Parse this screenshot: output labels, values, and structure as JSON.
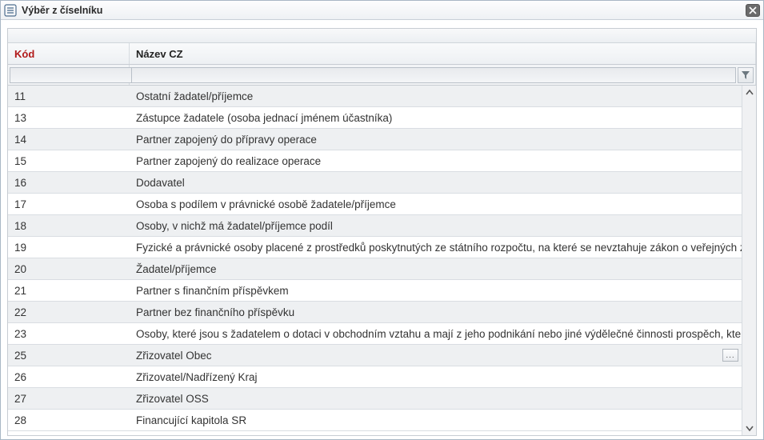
{
  "window": {
    "title": "Výběr z číselníku"
  },
  "grid": {
    "columns": {
      "code": "Kód",
      "name": "Název CZ"
    },
    "filters": {
      "code_value": "",
      "name_value": ""
    },
    "selectedIndex": 12,
    "rows": [
      {
        "code": "11",
        "name": "Ostatní žadatel/příjemce"
      },
      {
        "code": "13",
        "name": "Zástupce žadatele (osoba jednací jménem účastníka)"
      },
      {
        "code": "14",
        "name": "Partner zapojený do přípravy operace"
      },
      {
        "code": "15",
        "name": "Partner zapojený do realizace operace"
      },
      {
        "code": "16",
        "name": "Dodavatel"
      },
      {
        "code": "17",
        "name": "Osoba s podílem v právnické osobě žadatele/příjemce"
      },
      {
        "code": "18",
        "name": "Osoby, v nichž má žadatel/příjemce podíl"
      },
      {
        "code": "19",
        "name": "Fyzické a právnické osoby placené z prostředků poskytnutých ze státního rozpočtu, na které se nevztahuje zákon o veřejných zakázkác..."
      },
      {
        "code": "20",
        "name": "Žadatel/příjemce"
      },
      {
        "code": "21",
        "name": "Partner s finančním příspěvkem"
      },
      {
        "code": "22",
        "name": "Partner bez finančního příspěvku"
      },
      {
        "code": "23",
        "name": "Osoby, které jsou s žadatelem o dotaci v obchodním vztahu a mají z jeho podnikání nebo jiné výdělečné činnosti prospěch, který se liší o"
      },
      {
        "code": "25",
        "name": "Zřizovatel Obec"
      },
      {
        "code": "26",
        "name": "Zřizovatel/Nadřízený Kraj"
      },
      {
        "code": "27",
        "name": "Zřizovatel OSS"
      },
      {
        "code": "28",
        "name": "Financující kapitola SR"
      }
    ]
  },
  "style": {
    "accent_sort": "#b11919",
    "row_alt_bg": "#eef0f2",
    "row_bg": "#ffffff",
    "border": "#c7ccd2"
  }
}
